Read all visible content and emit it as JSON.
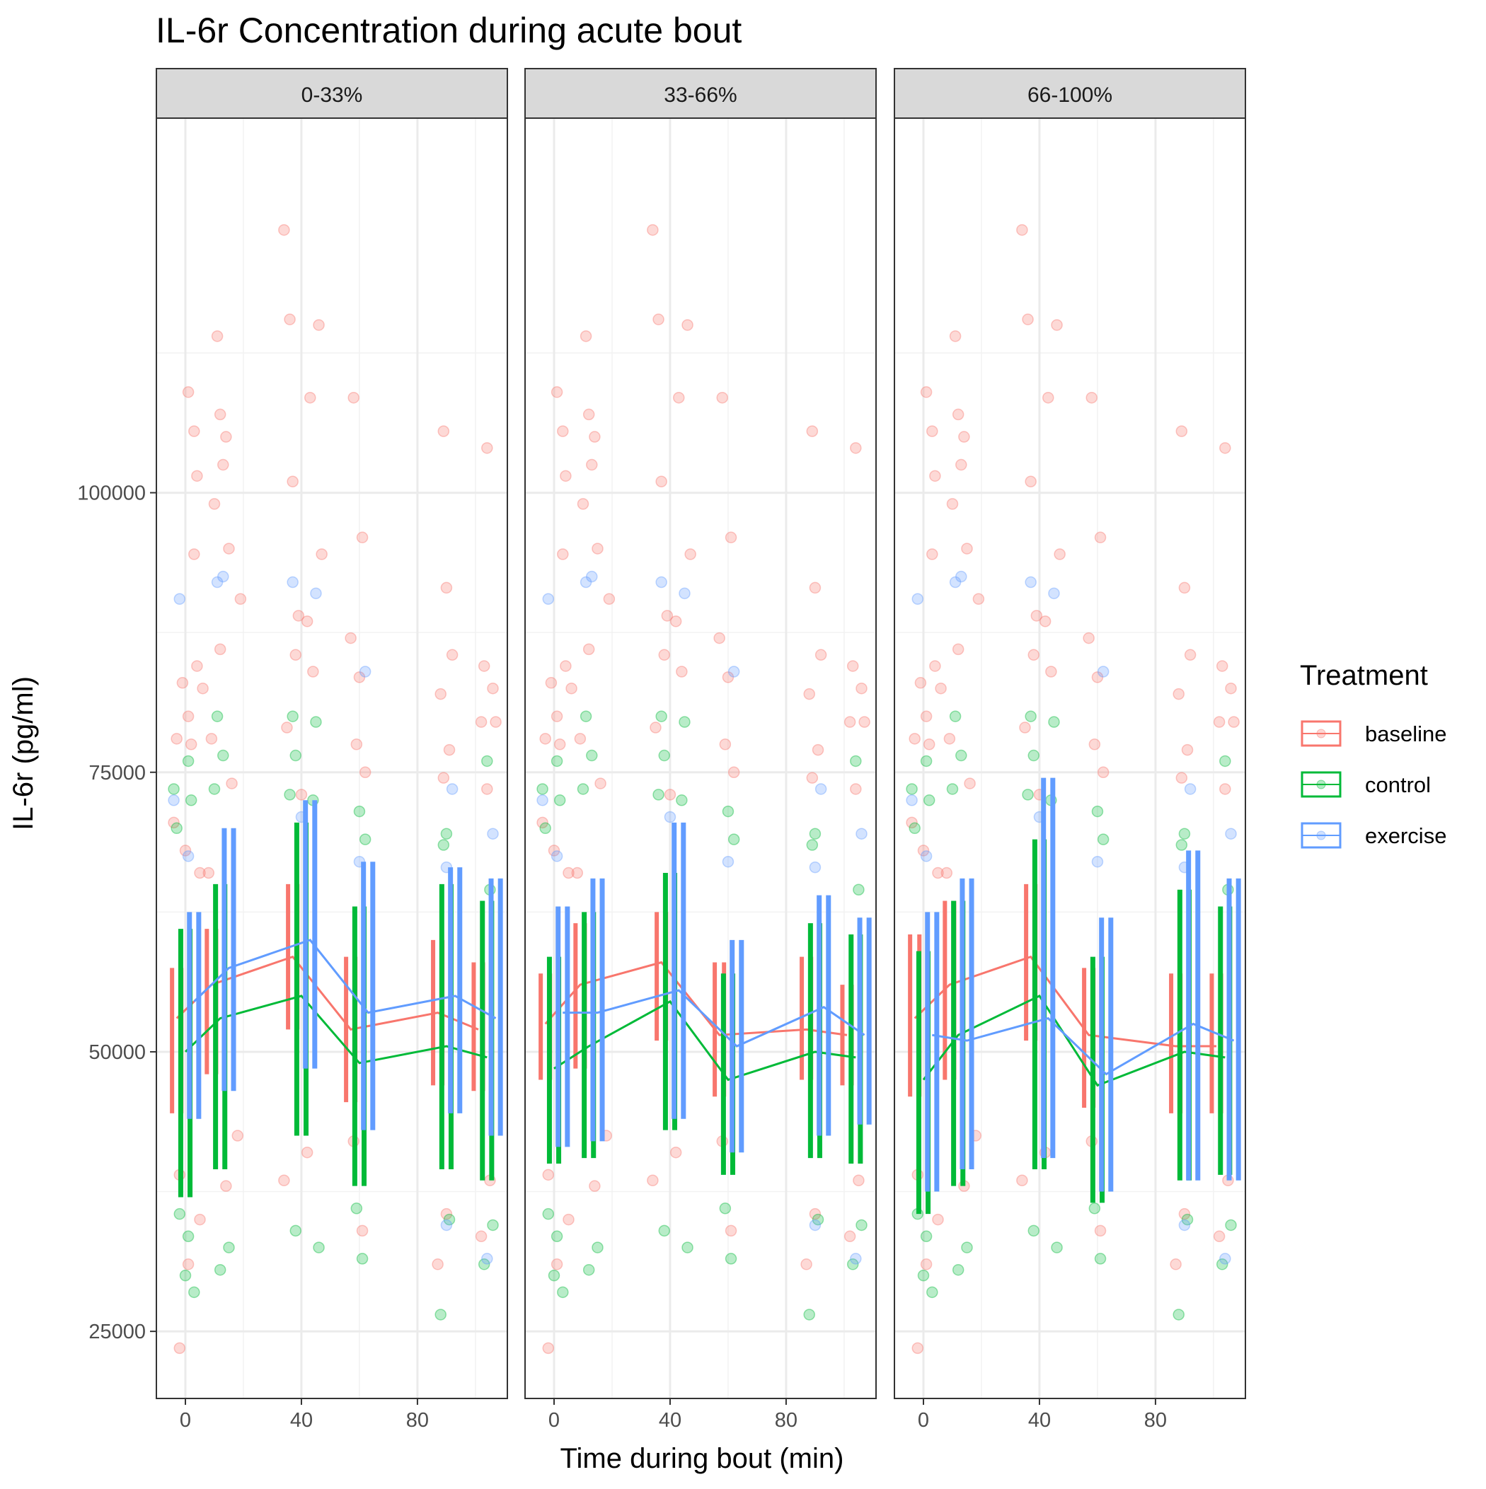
{
  "chart_data": {
    "type": "scatter",
    "title": "IL-6r Concentration during acute bout",
    "xlabel": "Time during bout (min)",
    "ylabel": "IL-6r (pg/ml)",
    "xlim": [
      -10,
      111
    ],
    "ylim": [
      19000,
      133500
    ],
    "x_ticks": [
      0,
      40,
      80
    ],
    "y_ticks": [
      25000,
      50000,
      75000,
      100000
    ],
    "facets": [
      "0-33%",
      "33-66%",
      "66-100%"
    ],
    "time_points": [
      0,
      12,
      40,
      60,
      90,
      104
    ],
    "legend": {
      "title": "Treatment",
      "entries": [
        "baseline",
        "control",
        "exercise"
      ],
      "position": "right"
    },
    "colors": {
      "baseline": "#F8766D",
      "control": "#00BA38",
      "exercise": "#619CFF"
    },
    "series": [
      {
        "facet": "0-33%",
        "groups": [
          {
            "name": "baseline",
            "mean": [
              53000,
              56000,
              58500,
              52000,
              53500,
              52000
            ],
            "low": [
              44500,
              48000,
              52000,
              45500,
              47000,
              46500
            ],
            "high": [
              57500,
              61000,
              65000,
              58500,
              60000,
              58000
            ]
          },
          {
            "name": "control",
            "mean": [
              50000,
              53000,
              55000,
              49000,
              50500,
              49500
            ],
            "low": [
              37000,
              39500,
              42500,
              38000,
              39500,
              38500
            ],
            "high": [
              61000,
              65000,
              70500,
              63000,
              65000,
              63500
            ]
          },
          {
            "name": "exercise",
            "mean": [
              54500,
              57500,
              60000,
              53500,
              55000,
              53000
            ],
            "low": [
              44000,
              46500,
              48500,
              43000,
              44500,
              42500
            ],
            "high": [
              62500,
              70000,
              72500,
              67000,
              66500,
              65500
            ]
          }
        ]
      },
      {
        "facet": "33-66%",
        "groups": [
          {
            "name": "baseline",
            "mean": [
              52500,
              56000,
              58000,
              51500,
              52000,
              51500
            ],
            "low": [
              47500,
              48500,
              51000,
              46000,
              47500,
              47000
            ],
            "high": [
              57000,
              61500,
              62500,
              58000,
              58500,
              56000
            ]
          },
          {
            "name": "control",
            "mean": [
              48500,
              50500,
              54500,
              47500,
              50000,
              49500
            ],
            "low": [
              40000,
              40500,
              43000,
              39000,
              40500,
              40000
            ],
            "high": [
              58500,
              62500,
              66000,
              57000,
              61500,
              60500
            ]
          },
          {
            "name": "exercise",
            "mean": [
              53500,
              53500,
              55500,
              50500,
              54000,
              51500
            ],
            "low": [
              41500,
              42000,
              44000,
              41000,
              42500,
              43500
            ],
            "high": [
              63000,
              65500,
              70500,
              60000,
              64000,
              62000
            ]
          }
        ]
      },
      {
        "facet": "66-100%",
        "groups": [
          {
            "name": "baseline",
            "mean": [
              53000,
              56000,
              58500,
              51500,
              50500,
              50500
            ],
            "low": [
              46000,
              47500,
              51000,
              45000,
              44500,
              44500
            ],
            "high": [
              60500,
              63500,
              65000,
              57500,
              57000,
              57000
            ]
          },
          {
            "name": "control",
            "mean": [
              47500,
              51500,
              55000,
              47000,
              50000,
              49500
            ],
            "low": [
              35500,
              38000,
              39500,
              36500,
              38500,
              39000
            ],
            "high": [
              59000,
              63500,
              69000,
              58500,
              64500,
              63000
            ]
          },
          {
            "name": "exercise",
            "mean": [
              51500,
              51000,
              53000,
              48000,
              52500,
              51000
            ],
            "low": [
              37500,
              39500,
              40500,
              37500,
              38500,
              38500
            ],
            "high": [
              62500,
              65500,
              74500,
              62000,
              68000,
              65500
            ]
          }
        ]
      }
    ],
    "scatter_points": [
      [
        -2,
        23500,
        "baseline"
      ],
      [
        1,
        109000,
        "baseline"
      ],
      [
        1,
        31000,
        "baseline"
      ],
      [
        3,
        105500,
        "baseline"
      ],
      [
        4,
        101500,
        "baseline"
      ],
      [
        3,
        94500,
        "baseline"
      ],
      [
        -1,
        83000,
        "baseline"
      ],
      [
        1,
        80000,
        "baseline"
      ],
      [
        -3,
        78000,
        "baseline"
      ],
      [
        2,
        77500,
        "baseline"
      ],
      [
        4,
        84500,
        "baseline"
      ],
      [
        6,
        82500,
        "baseline"
      ],
      [
        -4,
        70500,
        "baseline"
      ],
      [
        0,
        68000,
        "baseline"
      ],
      [
        5,
        66000,
        "baseline"
      ],
      [
        -2,
        39000,
        "baseline"
      ],
      [
        5,
        35000,
        "baseline"
      ],
      [
        12,
        107000,
        "baseline"
      ],
      [
        14,
        105000,
        "baseline"
      ],
      [
        11,
        114000,
        "baseline"
      ],
      [
        13,
        102500,
        "baseline"
      ],
      [
        10,
        99000,
        "baseline"
      ],
      [
        15,
        95000,
        "baseline"
      ],
      [
        19,
        90500,
        "baseline"
      ],
      [
        12,
        86000,
        "baseline"
      ],
      [
        9,
        78000,
        "baseline"
      ],
      [
        16,
        74000,
        "baseline"
      ],
      [
        8,
        66000,
        "baseline"
      ],
      [
        18,
        42500,
        "baseline"
      ],
      [
        14,
        38000,
        "baseline"
      ],
      [
        34,
        123500,
        "baseline"
      ],
      [
        36,
        115500,
        "baseline"
      ],
      [
        46,
        115000,
        "baseline"
      ],
      [
        43,
        108500,
        "baseline"
      ],
      [
        37,
        101000,
        "baseline"
      ],
      [
        47,
        94500,
        "baseline"
      ],
      [
        39,
        89000,
        "baseline"
      ],
      [
        42,
        88500,
        "baseline"
      ],
      [
        38,
        85500,
        "baseline"
      ],
      [
        44,
        84000,
        "baseline"
      ],
      [
        35,
        79000,
        "baseline"
      ],
      [
        40,
        73000,
        "baseline"
      ],
      [
        42,
        41000,
        "baseline"
      ],
      [
        34,
        38500,
        "baseline"
      ],
      [
        58,
        108500,
        "baseline"
      ],
      [
        61,
        96000,
        "baseline"
      ],
      [
        57,
        87000,
        "baseline"
      ],
      [
        60,
        83500,
        "baseline"
      ],
      [
        59,
        77500,
        "baseline"
      ],
      [
        62,
        75000,
        "baseline"
      ],
      [
        58,
        42000,
        "baseline"
      ],
      [
        61,
        34000,
        "baseline"
      ],
      [
        89,
        105500,
        "baseline"
      ],
      [
        90,
        91500,
        "baseline"
      ],
      [
        92,
        85500,
        "baseline"
      ],
      [
        88,
        82000,
        "baseline"
      ],
      [
        91,
        77000,
        "baseline"
      ],
      [
        89,
        74500,
        "baseline"
      ],
      [
        87,
        31000,
        "baseline"
      ],
      [
        90,
        35500,
        "baseline"
      ],
      [
        104,
        104000,
        "baseline"
      ],
      [
        103,
        84500,
        "baseline"
      ],
      [
        106,
        82500,
        "baseline"
      ],
      [
        102,
        79500,
        "baseline"
      ],
      [
        107,
        79500,
        "baseline"
      ],
      [
        104,
        73500,
        "baseline"
      ],
      [
        105,
        38500,
        "baseline"
      ],
      [
        102,
        33500,
        "baseline"
      ],
      [
        -4,
        73500,
        "control"
      ],
      [
        -3,
        70000,
        "control"
      ],
      [
        1,
        76000,
        "control"
      ],
      [
        2,
        72500,
        "control"
      ],
      [
        0,
        30000,
        "control"
      ],
      [
        3,
        28500,
        "control"
      ],
      [
        -2,
        35500,
        "control"
      ],
      [
        1,
        33500,
        "control"
      ],
      [
        11,
        80000,
        "control"
      ],
      [
        13,
        76500,
        "control"
      ],
      [
        10,
        73500,
        "control"
      ],
      [
        12,
        30500,
        "control"
      ],
      [
        15,
        32500,
        "control"
      ],
      [
        37,
        80000,
        "control"
      ],
      [
        38,
        76500,
        "control"
      ],
      [
        45,
        79500,
        "control"
      ],
      [
        36,
        73000,
        "control"
      ],
      [
        44,
        72500,
        "control"
      ],
      [
        38,
        34000,
        "control"
      ],
      [
        46,
        32500,
        "control"
      ],
      [
        60,
        71500,
        "control"
      ],
      [
        62,
        69000,
        "control"
      ],
      [
        59,
        36000,
        "control"
      ],
      [
        61,
        31500,
        "control"
      ],
      [
        90,
        69500,
        "control"
      ],
      [
        89,
        68500,
        "control"
      ],
      [
        88,
        26500,
        "control"
      ],
      [
        91,
        35000,
        "control"
      ],
      [
        104,
        76000,
        "control"
      ],
      [
        105,
        64500,
        "control"
      ],
      [
        103,
        31000,
        "control"
      ],
      [
        106,
        34500,
        "control"
      ],
      [
        -4,
        72500,
        "exercise"
      ],
      [
        -2,
        90500,
        "exercise"
      ],
      [
        1,
        67500,
        "exercise"
      ],
      [
        11,
        92000,
        "exercise"
      ],
      [
        13,
        92500,
        "exercise"
      ],
      [
        37,
        92000,
        "exercise"
      ],
      [
        45,
        91000,
        "exercise"
      ],
      [
        40,
        71000,
        "exercise"
      ],
      [
        62,
        84000,
        "exercise"
      ],
      [
        60,
        67000,
        "exercise"
      ],
      [
        92,
        73500,
        "exercise"
      ],
      [
        90,
        66500,
        "exercise"
      ],
      [
        106,
        69500,
        "exercise"
      ],
      [
        104,
        31500,
        "exercise"
      ],
      [
        90,
        34500,
        "exercise"
      ]
    ]
  }
}
